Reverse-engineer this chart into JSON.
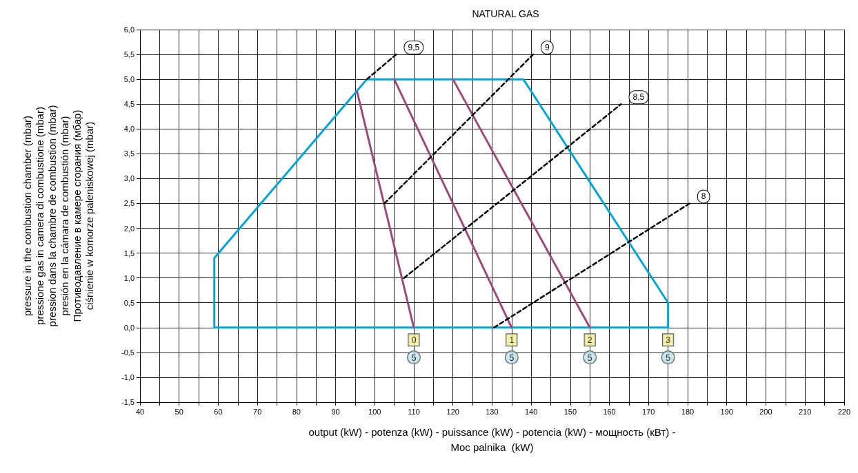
{
  "chart_data": {
    "type": "line",
    "title": "NATURAL GAS",
    "xlabel": "output (kW) - potenza (kW) - puissance (kW) - potencia (kW) - мощность (кВт) -\nMoc palnika  (kW)",
    "ylabel": "pressure in the combustion chamber (mbar)\npressione gas in camera di combustione (mbar)\npression dans la chambre de combustion (mbar)\npresión en la cámara de combustión (mbar)\nПротиводавление в камере сгорания (мбар)\nciśnienie w komorze paleniskowej (mbar)",
    "xlim": [
      40,
      220
    ],
    "ylim": [
      -1.5,
      6
    ],
    "xticks": [
      40,
      {
        "value": 45,
        "label": null
      },
      50,
      {
        "value": 55,
        "label": null
      },
      60,
      {
        "value": 65,
        "label": null
      },
      70,
      {
        "value": 75,
        "label": null
      },
      80,
      {
        "value": 85,
        "label": null
      },
      90,
      {
        "value": 95,
        "label": null
      },
      100,
      {
        "value": 105,
        "label": null
      },
      110,
      {
        "value": 115,
        "label": null
      },
      120,
      {
        "value": 125,
        "label": null
      },
      130,
      {
        "value": 135,
        "label": null
      },
      140,
      {
        "value": 145,
        "label": null
      },
      150,
      {
        "value": 155,
        "label": null
      },
      160,
      {
        "value": 165,
        "label": null
      },
      170,
      {
        "value": 175,
        "label": null
      },
      180,
      {
        "value": 185,
        "label": null
      },
      190,
      {
        "value": 195,
        "label": null
      },
      200,
      {
        "value": 205,
        "label": null
      },
      210,
      {
        "value": 215,
        "label": null
      },
      220
    ],
    "yticks": [
      {
        "value": -1.5,
        "label": "-1,5"
      },
      {
        "value": -1,
        "label": "-1,0"
      },
      {
        "value": -0.5,
        "label": "-0,5"
      },
      {
        "value": 0,
        "label": "0,0"
      },
      {
        "value": 0.5,
        "label": "0,5"
      },
      {
        "value": 1,
        "label": "1,0"
      },
      {
        "value": 1.5,
        "label": "1,5"
      },
      {
        "value": 2,
        "label": "2,0"
      },
      {
        "value": 2.5,
        "label": "2,5"
      },
      {
        "value": 3,
        "label": "3,0"
      },
      {
        "value": 3.5,
        "label": "3,5"
      },
      {
        "value": 4,
        "label": "4,0"
      },
      {
        "value": 4.5,
        "label": "4,5"
      },
      {
        "value": 5,
        "label": "5,0"
      },
      {
        "value": 5.5,
        "label": "5,5"
      },
      {
        "value": 6,
        "label": "6,0"
      }
    ],
    "grid": true,
    "legend": false,
    "marker": "none",
    "series": [
      {
        "color": "#00a6d6",
        "line_style": "solid",
        "x": [
          59,
          59,
          98,
          138,
          175,
          175
        ],
        "values": [
          0,
          1.4,
          5,
          5,
          0.5,
          0
        ]
      },
      {
        "color": "#00a6d6",
        "line_style": "solid",
        "x": [
          59,
          175
        ],
        "values": [
          0,
          0
        ]
      },
      {
        "color": "#9b4a7e",
        "line_style": "solid",
        "x": [
          110,
          95.5
        ],
        "values": [
          0,
          4.75
        ]
      },
      {
        "color": "#9b4a7e",
        "line_style": "solid",
        "x": [
          135,
          105
        ],
        "values": [
          0,
          5
        ]
      },
      {
        "color": "#9b4a7e",
        "line_style": "solid",
        "x": [
          155,
          120
        ],
        "values": [
          0,
          5
        ]
      },
      {
        "name": "9,5",
        "color": "#000000",
        "line_style": "dashed",
        "x": [
          98,
          105.5
        ],
        "values": [
          5,
          5.5
        ]
      },
      {
        "name": "9",
        "color": "#000000",
        "line_style": "dashed",
        "x": [
          102.5,
          140.5
        ],
        "values": [
          2.5,
          5.5
        ]
      },
      {
        "name": "8,5",
        "color": "#000000",
        "line_style": "dashed",
        "x": [
          107.5,
          163
        ],
        "values": [
          1,
          4.5
        ]
      },
      {
        "name": "8",
        "color": "#000000",
        "line_style": "dashed",
        "x": [
          130.5,
          180.5
        ],
        "values": [
          0,
          2.5
        ]
      }
    ],
    "annotations": [
      {
        "text": "0",
        "x": 110,
        "y": -0.25
      },
      {
        "text": "1",
        "x": 135,
        "y": -0.25
      },
      {
        "text": "2",
        "x": 155,
        "y": -0.25
      },
      {
        "text": "3",
        "x": 175,
        "y": -0.25
      },
      {
        "text": "5",
        "x": 110,
        "y": -0.6
      },
      {
        "text": "5",
        "x": 135,
        "y": -0.6
      },
      {
        "text": "5",
        "x": 155,
        "y": -0.6
      },
      {
        "text": "5",
        "x": 175,
        "y": -0.6
      }
    ]
  }
}
